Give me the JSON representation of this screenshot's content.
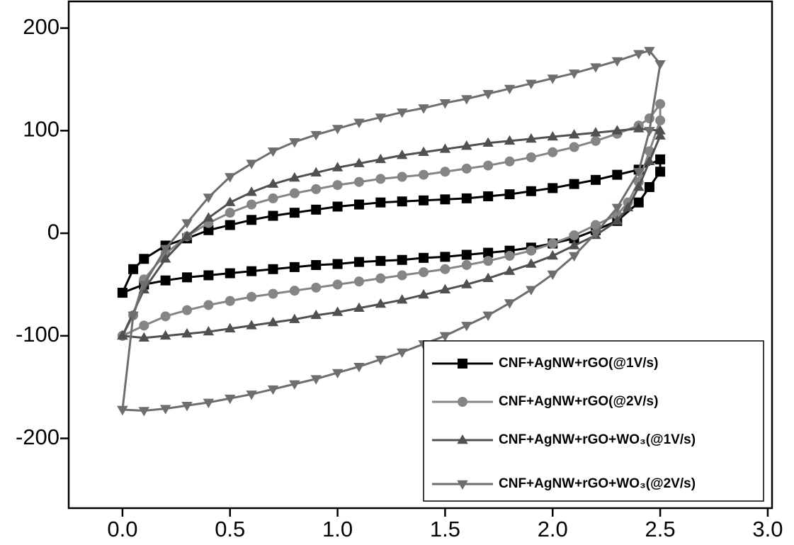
{
  "chart_data": {
    "type": "line",
    "xlim": [
      -0.25,
      3.02
    ],
    "ylim": [
      -268,
      226
    ],
    "xticks": [
      {
        "value": 0,
        "label": "0.0"
      },
      {
        "value": 0.5,
        "label": "0.5"
      },
      {
        "value": 1,
        "label": "1.0"
      },
      {
        "value": 1.5,
        "label": "1.5"
      },
      {
        "value": 2,
        "label": "2.0"
      },
      {
        "value": 2.5,
        "label": "2.5"
      },
      {
        "value": 3,
        "label": "3.0"
      }
    ],
    "yticks": [
      -200,
      -100,
      0,
      100,
      200
    ],
    "grid": false,
    "legend": "lower right",
    "series": [
      {
        "name": "CNF+AgNW+rGO(@1V/s)",
        "color": "#000000",
        "marker": "square",
        "x": [
          0,
          0.05,
          0.1,
          0.2,
          0.3,
          0.4,
          0.5,
          0.6,
          0.7,
          0.8,
          0.9,
          1.0,
          1.1,
          1.2,
          1.3,
          1.4,
          1.5,
          1.6,
          1.7,
          1.8,
          1.9,
          2.0,
          2.1,
          2.2,
          2.3,
          2.4,
          2.5,
          2.5,
          2.45,
          2.4,
          2.3,
          2.2,
          2.1,
          2.0,
          1.9,
          1.8,
          1.7,
          1.6,
          1.5,
          1.4,
          1.3,
          1.2,
          1.1,
          1.0,
          0.9,
          0.8,
          0.7,
          0.6,
          0.5,
          0.4,
          0.3,
          0.2,
          0.1,
          0
        ],
        "values": [
          -58,
          -35,
          -25,
          -12,
          -5,
          3,
          8,
          13,
          17,
          20,
          23,
          26,
          28,
          30,
          31,
          32,
          33,
          34,
          36,
          38,
          41,
          44,
          48,
          52,
          57,
          62,
          72,
          60,
          45,
          30,
          12,
          3,
          -5,
          -10,
          -14,
          -17,
          -19,
          -21,
          -23,
          -24,
          -26,
          -27,
          -28,
          -30,
          -31,
          -33,
          -35,
          -37,
          -39,
          -41,
          -43,
          -46,
          -50,
          -58
        ]
      },
      {
        "name": "CNF+AgNW+rGO(@2V/s)",
        "color": "#858585",
        "marker": "circle",
        "x": [
          0,
          0.05,
          0.1,
          0.2,
          0.3,
          0.4,
          0.5,
          0.6,
          0.7,
          0.8,
          0.9,
          1.0,
          1.1,
          1.2,
          1.3,
          1.4,
          1.5,
          1.6,
          1.7,
          1.8,
          1.9,
          2.0,
          2.1,
          2.2,
          2.3,
          2.4,
          2.45,
          2.5,
          2.5,
          2.45,
          2.4,
          2.35,
          2.3,
          2.2,
          2.1,
          2.0,
          1.9,
          1.8,
          1.7,
          1.6,
          1.5,
          1.4,
          1.3,
          1.2,
          1.1,
          1.0,
          0.9,
          0.8,
          0.7,
          0.6,
          0.5,
          0.4,
          0.3,
          0.2,
          0.1,
          0
        ],
        "values": [
          -100,
          -80,
          -45,
          -20,
          -3,
          10,
          20,
          28,
          34,
          39,
          43,
          47,
          50,
          53,
          55,
          57,
          60,
          63,
          66,
          70,
          74,
          79,
          84,
          90,
          97,
          105,
          112,
          126,
          110,
          80,
          50,
          30,
          18,
          8,
          -2,
          -10,
          -17,
          -22,
          -27,
          -31,
          -35,
          -38,
          -41,
          -44,
          -47,
          -50,
          -53,
          -56,
          -59,
          -62,
          -66,
          -70,
          -75,
          -81,
          -90,
          -100
        ]
      },
      {
        "name": "CNF+AgNW+rGO+WO₃(@1V/s)",
        "color": "#505050",
        "marker": "triangle-up",
        "x": [
          0,
          0.1,
          0.2,
          0.3,
          0.4,
          0.5,
          0.6,
          0.7,
          0.8,
          0.9,
          1.0,
          1.1,
          1.2,
          1.3,
          1.4,
          1.5,
          1.6,
          1.7,
          1.8,
          1.9,
          2.0,
          2.1,
          2.2,
          2.3,
          2.4,
          2.5,
          2.5,
          2.45,
          2.4,
          2.35,
          2.3,
          2.2,
          2.1,
          2.0,
          1.9,
          1.8,
          1.7,
          1.6,
          1.5,
          1.4,
          1.3,
          1.2,
          1.1,
          1.0,
          0.9,
          0.8,
          0.7,
          0.6,
          0.5,
          0.4,
          0.3,
          0.2,
          0.1,
          0
        ],
        "values": [
          -100,
          -55,
          -25,
          -3,
          15,
          30,
          40,
          48,
          54,
          59,
          64,
          68,
          72,
          76,
          79,
          82,
          85,
          88,
          90,
          92,
          94,
          96,
          98,
          100,
          102,
          100,
          95,
          70,
          45,
          25,
          12,
          -2,
          -12,
          -22,
          -30,
          -37,
          -44,
          -50,
          -55,
          -60,
          -65,
          -69,
          -73,
          -77,
          -80,
          -84,
          -87,
          -90,
          -93,
          -96,
          -98,
          -100,
          -102,
          -100
        ]
      },
      {
        "name": "CNF+AgNW+rGO+WO₃(@2V/s)",
        "color": "#6e6e6e",
        "marker": "triangle-down",
        "x": [
          0,
          0.05,
          0.1,
          0.2,
          0.3,
          0.4,
          0.5,
          0.6,
          0.7,
          0.8,
          0.9,
          1.0,
          1.1,
          1.2,
          1.3,
          1.4,
          1.5,
          1.6,
          1.7,
          1.8,
          1.9,
          2.0,
          2.1,
          2.2,
          2.3,
          2.4,
          2.45,
          2.5,
          2.45,
          2.4,
          2.3,
          2.2,
          2.1,
          2.0,
          1.9,
          1.8,
          1.7,
          1.6,
          1.5,
          1.4,
          1.3,
          1.2,
          1.1,
          1.0,
          0.9,
          0.8,
          0.7,
          0.6,
          0.5,
          0.4,
          0.3,
          0.2,
          0.1,
          0
        ],
        "values": [
          -172,
          -80,
          -50,
          -15,
          10,
          35,
          55,
          68,
          80,
          89,
          96,
          102,
          108,
          113,
          118,
          122,
          127,
          131,
          136,
          141,
          146,
          151,
          156,
          162,
          168,
          175,
          178,
          165,
          100,
          60,
          25,
          0,
          -22,
          -40,
          -55,
          -68,
          -80,
          -90,
          -100,
          -108,
          -116,
          -123,
          -130,
          -136,
          -142,
          -147,
          -152,
          -157,
          -161,
          -165,
          -168,
          -171,
          -173,
          -172
        ]
      }
    ]
  }
}
